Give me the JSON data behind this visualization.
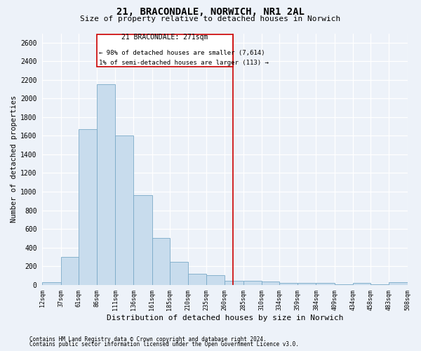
{
  "title": "21, BRACONDALE, NORWICH, NR1 2AL",
  "subtitle": "Size of property relative to detached houses in Norwich",
  "xlabel": "Distribution of detached houses by size in Norwich",
  "ylabel": "Number of detached properties",
  "footnote1": "Contains HM Land Registry data © Crown copyright and database right 2024.",
  "footnote2": "Contains public sector information licensed under the Open Government Licence v3.0.",
  "bar_color": "#c8dced",
  "bar_edge_color": "#7aaac8",
  "vline_color": "#cc0000",
  "vline_x": 271,
  "annotation_title": "21 BRACONDALE: 271sqm",
  "annotation_line1": "← 98% of detached houses are smaller (7,614)",
  "annotation_line2": "1% of semi-detached houses are larger (113) →",
  "background_color": "#edf2f9",
  "grid_color": "#ffffff",
  "bin_edges": [
    12,
    37,
    61,
    86,
    111,
    136,
    161,
    185,
    210,
    235,
    260,
    285,
    310,
    334,
    359,
    384,
    409,
    434,
    458,
    483,
    508
  ],
  "bar_heights": [
    25,
    300,
    1670,
    2150,
    1600,
    960,
    500,
    250,
    120,
    100,
    45,
    45,
    35,
    20,
    20,
    20,
    5,
    20,
    5,
    25
  ],
  "ylim": [
    0,
    2700
  ],
  "yticks": [
    0,
    200,
    400,
    600,
    800,
    1000,
    1200,
    1400,
    1600,
    1800,
    2000,
    2200,
    2400,
    2600
  ]
}
